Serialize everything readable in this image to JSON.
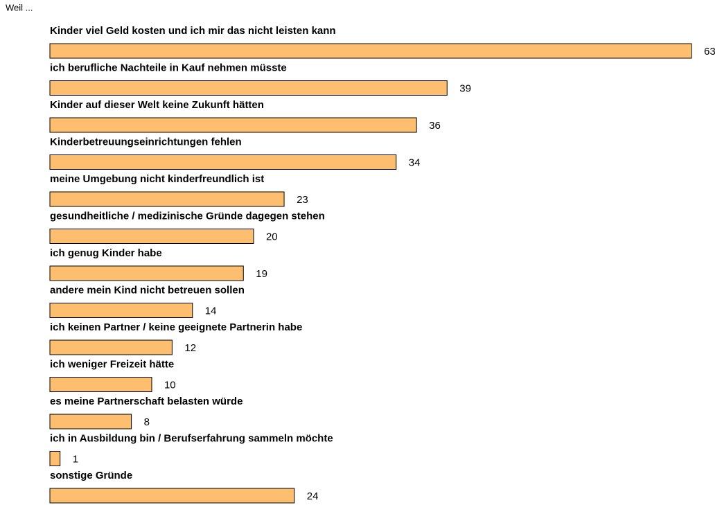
{
  "chart_data": {
    "type": "bar",
    "orientation": "horizontal",
    "title": "Weil ...",
    "categories": [
      "Kinder viel Geld kosten und ich mir das nicht leisten kann",
      "ich berufliche Nachteile in Kauf nehmen müsste",
      "Kinder auf dieser Welt keine Zukunft hätten",
      "Kinderbetreuungseinrichtungen fehlen",
      "meine Umgebung nicht kinderfreundlich ist",
      "gesundheitliche / medizinische Gründe dagegen stehen",
      "ich genug Kinder habe",
      "andere mein Kind nicht betreuen sollen",
      "ich keinen Partner / keine geeignete Partnerin habe",
      "ich weniger Freizeit hätte",
      "es meine Partnerschaft belasten würde",
      "ich in Ausbildung bin / Berufserfahrung sammeln möchte",
      "sonstige Gründe"
    ],
    "values": [
      63,
      39,
      36,
      34,
      23,
      20,
      19,
      14,
      12,
      10,
      8,
      1,
      24
    ],
    "color": "#fdbf6f"
  }
}
